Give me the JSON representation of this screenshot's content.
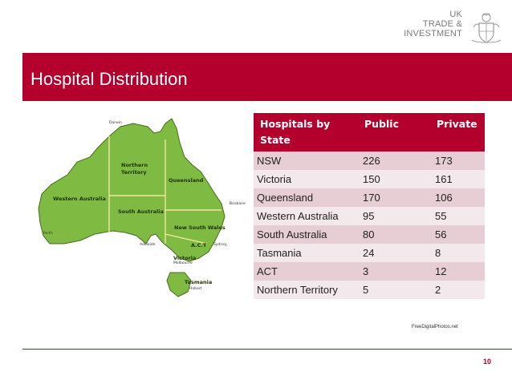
{
  "logo": {
    "line1": "UK",
    "line2": "TRADE &",
    "line3": "INVESTMENT"
  },
  "title": "Hospital Distribution",
  "map": {
    "regions": {
      "wa": "Western Australia",
      "nt_line1": "Northern",
      "nt_line2": "Territory",
      "qld": "Queensland",
      "sa": "South Australia",
      "nsw": "New South Wales",
      "act": "A.C.T",
      "vic": "Victoria",
      "tas": "Tasmania"
    },
    "cities": {
      "darwin": "Darwin",
      "brisbane": "Brisbane",
      "perth": "Perth",
      "adelaide": "Adelaide",
      "sydney": "Sydney",
      "melbourne": "Melbourne",
      "hobart": "Hobart"
    },
    "colors": {
      "land": "#7fbb42",
      "border": "#f2e6a0",
      "sea_line": "#4a6b1f"
    }
  },
  "table": {
    "headers": [
      "Hospitals by State",
      "Public",
      "Private"
    ],
    "rows": [
      [
        "NSW",
        "226",
        "173"
      ],
      [
        "Victoria",
        "150",
        "161"
      ],
      [
        "Queensland",
        "170",
        "106"
      ],
      [
        "Western Australia",
        "95",
        "55"
      ],
      [
        "South Australia",
        "80",
        "56"
      ],
      [
        "Tasmania",
        "24",
        "8"
      ],
      [
        "ACT",
        "3",
        "12"
      ],
      [
        "Northern Territory",
        "5",
        "2"
      ]
    ]
  },
  "credit": "FreeDigitalPhotos.net",
  "page_number": "10",
  "colors": {
    "accent": "#b4002d",
    "row_odd": "#e7cdd4",
    "row_even": "#f3e8eb"
  }
}
